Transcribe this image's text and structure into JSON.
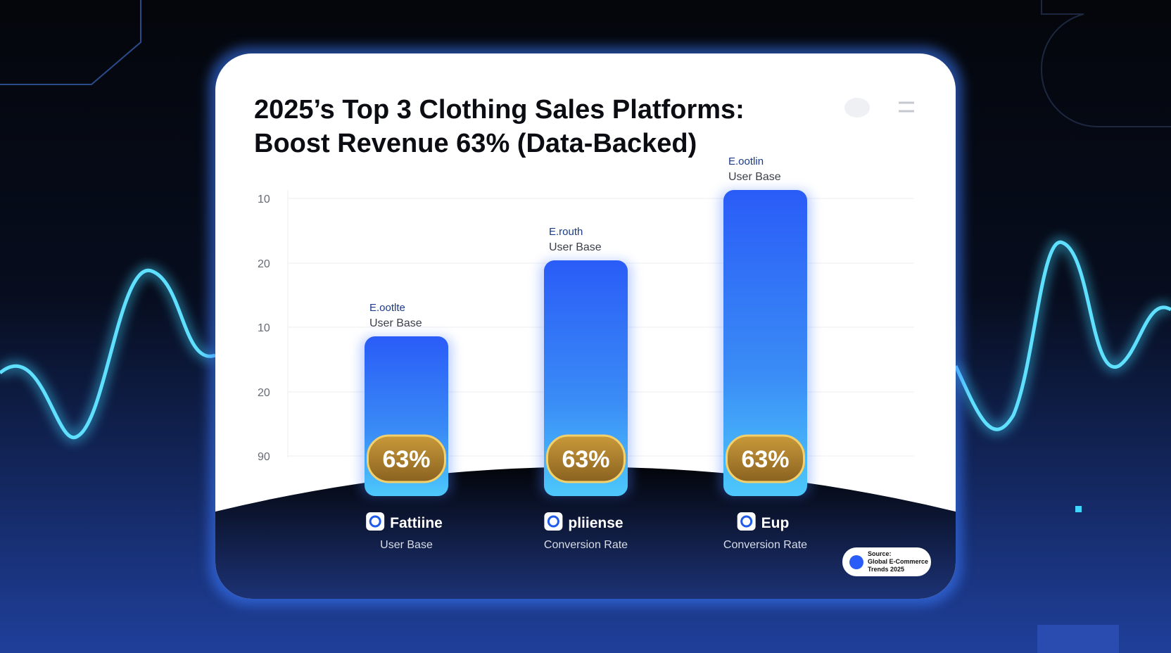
{
  "title": [
    "2025’s Top 3 Clothing Sales Platforms:",
    "Boost Revenue 63% (Data-Backed)"
  ],
  "axis_labels": [
    "10",
    "20",
    "10",
    "20",
    "90"
  ],
  "bars": [
    {
      "top_label": [
        "E.ootlte",
        "User Base"
      ],
      "badge": "63%",
      "name": "Fattiine",
      "caption": "User Base"
    },
    {
      "top_label": [
        "E.routh",
        "User Base"
      ],
      "badge": "63%",
      "name": "pliiense",
      "caption": "Conversion Rate"
    },
    {
      "top_label": [
        "E.ootlin",
        "User Base"
      ],
      "badge": "63%",
      "name": "Eup",
      "caption": "Conversion Rate"
    }
  ],
  "source": [
    "Source:",
    "Global E-Commerce",
    "Trends 2025"
  ]
}
